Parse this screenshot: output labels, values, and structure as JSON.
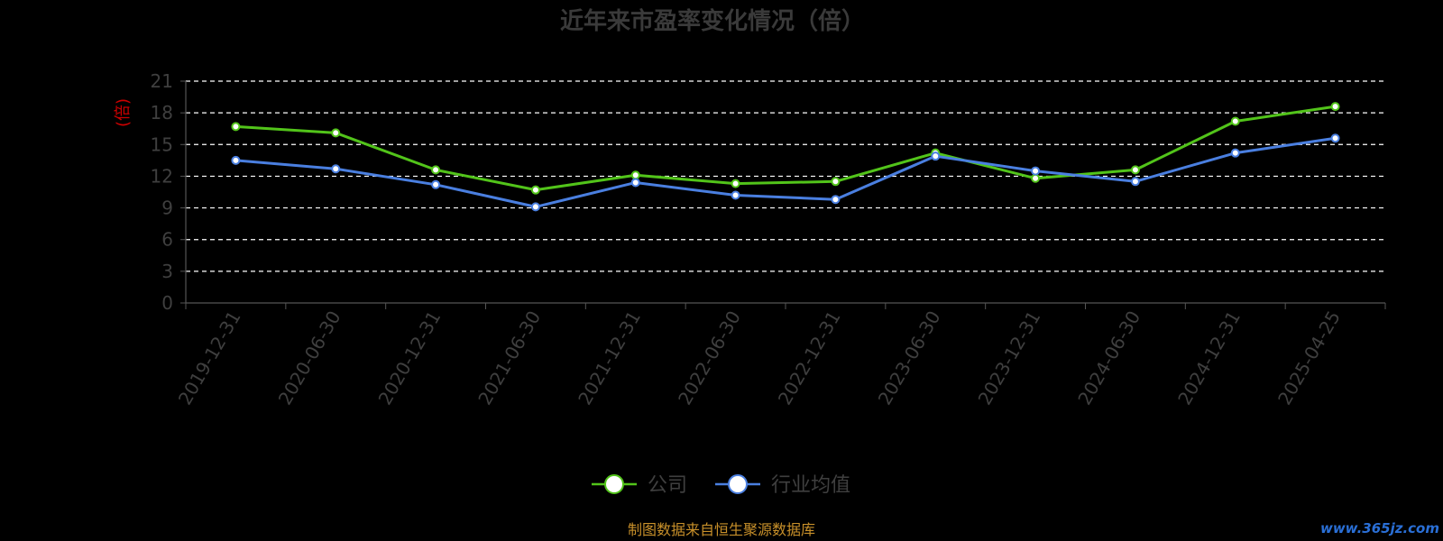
{
  "chart_data": {
    "type": "line",
    "title": "近年来市盈率变化情况（倍）",
    "ylabel": "(倍)",
    "ylim": [
      0,
      21
    ],
    "yticks": [
      0,
      3,
      6,
      9,
      12,
      15,
      18,
      21
    ],
    "grid": true,
    "legend_position": "bottom",
    "categories": [
      "2019-12-31",
      "2020-06-30",
      "2020-12-31",
      "2021-06-30",
      "2021-12-31",
      "2022-06-30",
      "2022-12-31",
      "2023-06-30",
      "2023-12-31",
      "2024-06-30",
      "2024-12-31",
      "2025-04-25"
    ],
    "series": [
      {
        "name": "公司",
        "color": "#52c41a",
        "values": [
          16.7,
          16.1,
          12.6,
          10.7,
          12.1,
          11.3,
          11.5,
          14.2,
          11.8,
          12.6,
          17.2,
          18.6
        ]
      },
      {
        "name": "行业均值",
        "color": "#4a7fe0",
        "values": [
          13.5,
          12.7,
          11.2,
          9.1,
          11.4,
          10.2,
          9.8,
          13.9,
          12.5,
          11.5,
          14.2,
          15.6
        ]
      }
    ]
  },
  "footer": {
    "source": "制图数据来自恒生聚源数据库",
    "source_color": "#c8902a",
    "watermark": "www.365jz.com",
    "watermark_color": "#2a6fd6"
  }
}
